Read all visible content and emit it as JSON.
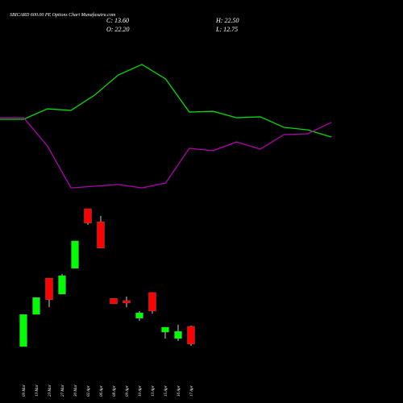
{
  "chart_data": [
    {
      "type": "candlestick",
      "title": "SBICARD 600.00 PE Options Chart Munafasutra.com",
      "annotations": [
        "C: 13.60",
        "H: 22.50",
        "O: 22.20",
        "L: 12.75"
      ],
      "categories": [
        "09 Mar",
        "13 Mar",
        "23 Mar",
        "27 Mar",
        "30 Mar",
        "02 Apr",
        "06 Apr",
        "08 Apr",
        "09 Apr",
        "10 Apr",
        "13 Apr",
        "15 Apr",
        "16 Apr",
        "17 Apr"
      ],
      "open": [
        12.4,
        28.0,
        45.6,
        37.8,
        50.3,
        79.2,
        72.9,
        35.8,
        34.7,
        26.1,
        38.6,
        19.4,
        16.3,
        22.2
      ],
      "high": [
        28.0,
        36.2,
        45.6,
        47.6,
        63.6,
        79.2,
        75.7,
        35.8,
        36.6,
        29.6,
        38.6,
        21.8,
        23.0,
        22.5
      ],
      "low": [
        12.4,
        28.0,
        31.5,
        37.8,
        50.3,
        71.4,
        60.1,
        33.1,
        31.5,
        24.9,
        28.4,
        16.3,
        15.1,
        12.75
      ],
      "close": [
        28.0,
        36.2,
        35.1,
        46.8,
        63.6,
        72.2,
        60.1,
        33.1,
        33.5,
        28.8,
        29.6,
        21.8,
        19.8,
        13.6
      ],
      "up_color": "#00ff00",
      "down_color": "#ff0000",
      "ylim": [
        8.5,
        82.7
      ]
    },
    {
      "type": "line",
      "ylim": [
        0,
        100
      ],
      "series": [
        {
          "color": "#00dd00",
          "values": [
            53.7,
            53.7,
            60.5,
            59.5,
            69.5,
            82.6,
            89.5,
            80.0,
            58.4,
            58.9,
            54.7,
            55.3,
            48.4,
            46.8,
            42.1
          ]
        },
        {
          "color": "#b000b0",
          "values": [
            54.7,
            54.7,
            36.3,
            8.9,
            10.0,
            11.1,
            8.9,
            12.1,
            34.7,
            33.2,
            38.9,
            34.2,
            43.7,
            44.2,
            51.6
          ]
        }
      ]
    }
  ]
}
